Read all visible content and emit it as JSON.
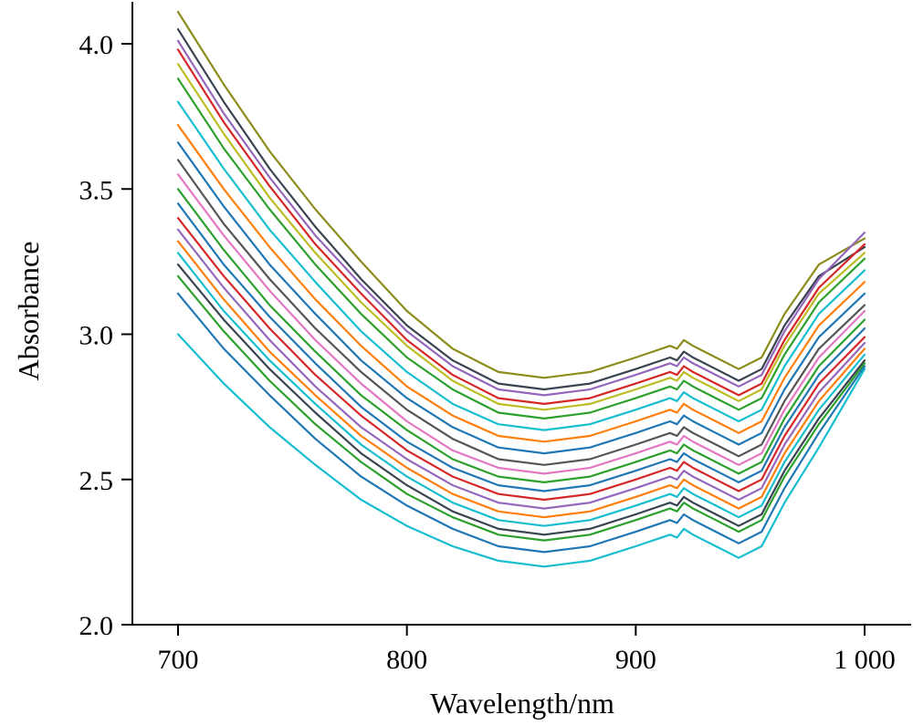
{
  "chart_data": {
    "type": "line",
    "xlabel": "Wavelength/nm",
    "ylabel": "Absorbance",
    "xlim": [
      680,
      1020
    ],
    "ylim": [
      2.0,
      4.2
    ],
    "x_ticks": [
      700,
      800,
      900,
      1000
    ],
    "x_tick_labels": [
      "700",
      "800",
      "900",
      "1 000"
    ],
    "y_ticks": [
      2.0,
      2.5,
      3.0,
      3.5,
      4.0
    ],
    "y_tick_labels": [
      "2.0",
      "2.5",
      "3.0",
      "3.5",
      "4.0"
    ],
    "grid": false,
    "legend": "none",
    "x": [
      700,
      720,
      740,
      760,
      780,
      800,
      820,
      840,
      860,
      880,
      900,
      915,
      918,
      921,
      925,
      935,
      945,
      955,
      965,
      980,
      1000
    ],
    "series": [
      {
        "color": "#8c8c1c",
        "values": [
          4.11,
          3.86,
          3.63,
          3.43,
          3.25,
          3.08,
          2.95,
          2.87,
          2.85,
          2.87,
          2.92,
          2.96,
          2.95,
          2.98,
          2.96,
          2.92,
          2.88,
          2.92,
          3.07,
          3.24,
          3.33
        ]
      },
      {
        "color": "#3a4350",
        "values": [
          4.05,
          3.8,
          3.57,
          3.37,
          3.19,
          3.03,
          2.91,
          2.83,
          2.81,
          2.83,
          2.88,
          2.92,
          2.91,
          2.94,
          2.92,
          2.88,
          2.84,
          2.88,
          3.03,
          3.2,
          3.3
        ]
      },
      {
        "color": "#9467bd",
        "values": [
          4.01,
          3.76,
          3.54,
          3.34,
          3.17,
          3.01,
          2.89,
          2.81,
          2.79,
          2.81,
          2.86,
          2.9,
          2.89,
          2.92,
          2.9,
          2.86,
          2.82,
          2.86,
          3.01,
          3.19,
          3.35
        ]
      },
      {
        "color": "#d62728",
        "values": [
          3.98,
          3.73,
          3.51,
          3.31,
          3.14,
          2.98,
          2.86,
          2.78,
          2.76,
          2.78,
          2.83,
          2.87,
          2.86,
          2.89,
          2.87,
          2.83,
          2.79,
          2.83,
          2.98,
          3.16,
          3.31
        ]
      },
      {
        "color": "#bcbd22",
        "values": [
          3.93,
          3.69,
          3.47,
          3.28,
          3.11,
          2.96,
          2.84,
          2.76,
          2.74,
          2.76,
          2.81,
          2.85,
          2.84,
          2.87,
          2.85,
          2.81,
          2.77,
          2.81,
          2.96,
          3.14,
          3.28
        ]
      },
      {
        "color": "#2ca02c",
        "values": [
          3.88,
          3.64,
          3.43,
          3.24,
          3.07,
          2.92,
          2.81,
          2.73,
          2.71,
          2.73,
          2.78,
          2.82,
          2.81,
          2.84,
          2.82,
          2.78,
          2.74,
          2.78,
          2.93,
          3.11,
          3.26
        ]
      },
      {
        "color": "#17becf",
        "values": [
          3.8,
          3.57,
          3.36,
          3.18,
          3.01,
          2.87,
          2.76,
          2.69,
          2.67,
          2.69,
          2.74,
          2.78,
          2.77,
          2.8,
          2.78,
          2.74,
          2.7,
          2.74,
          2.89,
          3.07,
          3.22
        ]
      },
      {
        "color": "#ff7f0e",
        "values": [
          3.72,
          3.5,
          3.3,
          3.12,
          2.96,
          2.82,
          2.72,
          2.65,
          2.63,
          2.65,
          2.7,
          2.74,
          2.73,
          2.76,
          2.74,
          2.7,
          2.66,
          2.7,
          2.85,
          3.03,
          3.18
        ]
      },
      {
        "color": "#1f77b4",
        "values": [
          3.66,
          3.44,
          3.24,
          3.07,
          2.91,
          2.78,
          2.68,
          2.61,
          2.59,
          2.61,
          2.66,
          2.7,
          2.69,
          2.72,
          2.7,
          2.66,
          2.62,
          2.66,
          2.81,
          2.99,
          3.14
        ]
      },
      {
        "color": "#555555",
        "values": [
          3.6,
          3.38,
          3.19,
          3.02,
          2.87,
          2.74,
          2.64,
          2.57,
          2.55,
          2.57,
          2.62,
          2.66,
          2.65,
          2.68,
          2.66,
          2.62,
          2.58,
          2.62,
          2.77,
          2.95,
          3.1
        ]
      },
      {
        "color": "#e377c2",
        "values": [
          3.55,
          3.34,
          3.15,
          2.98,
          2.83,
          2.7,
          2.6,
          2.54,
          2.52,
          2.54,
          2.59,
          2.63,
          2.62,
          2.65,
          2.63,
          2.59,
          2.55,
          2.59,
          2.74,
          2.92,
          3.08
        ]
      },
      {
        "color": "#2ca02c",
        "values": [
          3.5,
          3.29,
          3.1,
          2.94,
          2.79,
          2.67,
          2.57,
          2.51,
          2.49,
          2.51,
          2.56,
          2.6,
          2.59,
          2.62,
          2.6,
          2.56,
          2.52,
          2.56,
          2.71,
          2.89,
          3.05
        ]
      },
      {
        "color": "#1f77b4",
        "values": [
          3.45,
          3.24,
          3.06,
          2.9,
          2.75,
          2.63,
          2.54,
          2.48,
          2.46,
          2.48,
          2.53,
          2.57,
          2.56,
          2.59,
          2.57,
          2.53,
          2.49,
          2.53,
          2.68,
          2.86,
          3.02
        ]
      },
      {
        "color": "#d62728",
        "values": [
          3.4,
          3.2,
          3.02,
          2.86,
          2.72,
          2.6,
          2.51,
          2.45,
          2.43,
          2.45,
          2.5,
          2.54,
          2.53,
          2.56,
          2.54,
          2.5,
          2.46,
          2.5,
          2.65,
          2.83,
          2.99
        ]
      },
      {
        "color": "#9467bd",
        "values": [
          3.36,
          3.16,
          2.98,
          2.82,
          2.68,
          2.57,
          2.48,
          2.42,
          2.4,
          2.42,
          2.47,
          2.51,
          2.5,
          2.53,
          2.51,
          2.47,
          2.43,
          2.47,
          2.62,
          2.8,
          2.97
        ]
      },
      {
        "color": "#ff7f0e",
        "values": [
          3.32,
          3.12,
          2.94,
          2.79,
          2.65,
          2.54,
          2.45,
          2.39,
          2.37,
          2.39,
          2.44,
          2.48,
          2.47,
          2.5,
          2.48,
          2.44,
          2.4,
          2.44,
          2.59,
          2.77,
          2.95
        ]
      },
      {
        "color": "#17becf",
        "values": [
          3.28,
          3.08,
          2.91,
          2.76,
          2.62,
          2.51,
          2.42,
          2.36,
          2.34,
          2.36,
          2.41,
          2.45,
          2.44,
          2.47,
          2.45,
          2.41,
          2.37,
          2.41,
          2.56,
          2.74,
          2.93
        ]
      },
      {
        "color": "#3a4350",
        "values": [
          3.24,
          3.05,
          2.88,
          2.73,
          2.59,
          2.48,
          2.39,
          2.33,
          2.31,
          2.33,
          2.38,
          2.42,
          2.41,
          2.44,
          2.42,
          2.38,
          2.34,
          2.38,
          2.53,
          2.71,
          2.91
        ]
      },
      {
        "color": "#2ca02c",
        "values": [
          3.2,
          3.01,
          2.84,
          2.69,
          2.56,
          2.45,
          2.37,
          2.31,
          2.29,
          2.31,
          2.36,
          2.4,
          2.39,
          2.42,
          2.4,
          2.36,
          2.32,
          2.36,
          2.51,
          2.69,
          2.9
        ]
      },
      {
        "color": "#1f77b4",
        "values": [
          3.14,
          2.95,
          2.79,
          2.64,
          2.51,
          2.41,
          2.33,
          2.27,
          2.25,
          2.27,
          2.32,
          2.36,
          2.35,
          2.38,
          2.36,
          2.32,
          2.28,
          2.32,
          2.47,
          2.66,
          2.89
        ]
      },
      {
        "color": "#17becf",
        "values": [
          3.0,
          2.83,
          2.68,
          2.55,
          2.43,
          2.34,
          2.27,
          2.22,
          2.2,
          2.22,
          2.27,
          2.31,
          2.3,
          2.33,
          2.31,
          2.27,
          2.23,
          2.27,
          2.42,
          2.61,
          2.88
        ]
      }
    ]
  }
}
